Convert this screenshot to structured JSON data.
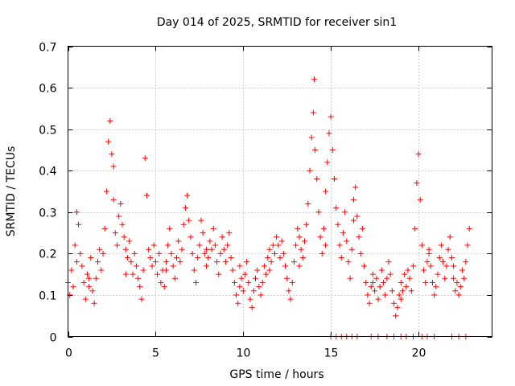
{
  "chart_data": {
    "type": "scatter",
    "title": "Day 014 of 2025, SRMTID for receiver sin1",
    "xlabel": "GPS time / hours",
    "ylabel": "SRMTID / TECUs",
    "xlim": [
      0,
      24.2
    ],
    "ylim": [
      0,
      0.7
    ],
    "xticks": [
      0,
      5,
      10,
      15,
      20
    ],
    "xtick_labels": [
      "0",
      "5",
      "10",
      "15",
      "20"
    ],
    "yticks": [
      0,
      0.1,
      0.2,
      0.3,
      0.4,
      0.5,
      0.6,
      0.7
    ],
    "ytick_labels": [
      "0",
      "0.1",
      "0.2",
      "0.3",
      "0.4",
      "0.5",
      "0.6",
      "0.7"
    ],
    "grid": true,
    "marker": "+",
    "color": "#ff0000",
    "series": [
      {
        "name": "sin1",
        "points": [
          [
            0.0,
            0.13
          ],
          [
            0.1,
            0.1
          ],
          [
            0.2,
            0.16
          ],
          [
            0.3,
            0.12
          ],
          [
            0.4,
            0.22
          ],
          [
            0.5,
            0.3
          ],
          [
            0.6,
            0.27
          ],
          [
            0.7,
            0.2
          ],
          [
            0.8,
            0.17
          ],
          [
            0.9,
            0.13
          ],
          [
            1.0,
            0.09
          ],
          [
            1.1,
            0.15
          ],
          [
            1.2,
            0.12
          ],
          [
            1.3,
            0.19
          ],
          [
            1.4,
            0.11
          ],
          [
            1.5,
            0.08
          ],
          [
            1.6,
            0.14
          ],
          [
            1.7,
            0.18
          ],
          [
            1.8,
            0.21
          ],
          [
            1.9,
            0.16
          ],
          [
            2.0,
            0.2
          ],
          [
            2.1,
            0.26
          ],
          [
            2.2,
            0.35
          ],
          [
            2.3,
            0.47
          ],
          [
            2.4,
            0.52
          ],
          [
            2.5,
            0.44
          ],
          [
            2.6,
            0.33
          ],
          [
            2.7,
            0.25
          ],
          [
            2.8,
            0.22
          ],
          [
            2.9,
            0.29
          ],
          [
            3.0,
            0.32
          ],
          [
            3.1,
            0.27
          ],
          [
            3.2,
            0.24
          ],
          [
            3.3,
            0.21
          ],
          [
            3.4,
            0.19
          ],
          [
            3.5,
            0.23
          ],
          [
            3.6,
            0.18
          ],
          [
            3.7,
            0.15
          ],
          [
            3.8,
            0.2
          ],
          [
            3.9,
            0.17
          ],
          [
            4.0,
            0.14
          ],
          [
            4.1,
            0.12
          ],
          [
            4.2,
            0.09
          ],
          [
            4.3,
            0.16
          ],
          [
            4.4,
            0.43
          ],
          [
            4.5,
            0.34
          ],
          [
            4.6,
            0.21
          ],
          [
            4.7,
            0.19
          ],
          [
            4.8,
            0.17
          ],
          [
            4.9,
            0.22
          ],
          [
            5.0,
            0.18
          ],
          [
            5.1,
            0.15
          ],
          [
            5.2,
            0.2
          ],
          [
            5.3,
            0.13
          ],
          [
            5.4,
            0.16
          ],
          [
            5.5,
            0.12
          ],
          [
            5.6,
            0.18
          ],
          [
            5.7,
            0.22
          ],
          [
            5.8,
            0.26
          ],
          [
            5.9,
            0.2
          ],
          [
            6.0,
            0.17
          ],
          [
            6.1,
            0.14
          ],
          [
            6.2,
            0.19
          ],
          [
            6.3,
            0.23
          ],
          [
            6.4,
            0.18
          ],
          [
            6.5,
            0.21
          ],
          [
            6.6,
            0.27
          ],
          [
            6.7,
            0.31
          ],
          [
            6.8,
            0.34
          ],
          [
            6.9,
            0.28
          ],
          [
            7.0,
            0.24
          ],
          [
            7.1,
            0.2
          ],
          [
            7.2,
            0.16
          ],
          [
            7.3,
            0.13
          ],
          [
            7.4,
            0.19
          ],
          [
            7.5,
            0.22
          ],
          [
            7.6,
            0.28
          ],
          [
            7.7,
            0.25
          ],
          [
            7.8,
            0.2
          ],
          [
            7.9,
            0.17
          ],
          [
            8.0,
            0.19
          ],
          [
            8.1,
            0.23
          ],
          [
            8.2,
            0.21
          ],
          [
            8.3,
            0.26
          ],
          [
            8.4,
            0.22
          ],
          [
            8.5,
            0.18
          ],
          [
            8.6,
            0.15
          ],
          [
            8.7,
            0.2
          ],
          [
            8.8,
            0.24
          ],
          [
            8.9,
            0.21
          ],
          [
            9.0,
            0.18
          ],
          [
            9.1,
            0.22
          ],
          [
            9.2,
            0.25
          ],
          [
            9.3,
            0.19
          ],
          [
            9.4,
            0.16
          ],
          [
            9.5,
            0.13
          ],
          [
            9.6,
            0.1
          ],
          [
            9.7,
            0.08
          ],
          [
            9.8,
            0.12
          ],
          [
            9.9,
            0.14
          ],
          [
            10.0,
            0.11
          ],
          [
            10.1,
            0.15
          ],
          [
            10.2,
            0.18
          ],
          [
            10.3,
            0.13
          ],
          [
            10.4,
            0.09
          ],
          [
            10.5,
            0.07
          ],
          [
            10.6,
            0.11
          ],
          [
            10.7,
            0.14
          ],
          [
            10.8,
            0.16
          ],
          [
            10.9,
            0.12
          ],
          [
            11.0,
            0.1
          ],
          [
            11.1,
            0.13
          ],
          [
            11.2,
            0.17
          ],
          [
            11.3,
            0.15
          ],
          [
            11.4,
            0.19
          ],
          [
            11.5,
            0.21
          ],
          [
            11.6,
            0.18
          ],
          [
            11.7,
            0.22
          ],
          [
            11.8,
            0.2
          ],
          [
            11.9,
            0.24
          ],
          [
            12.0,
            0.22
          ],
          [
            12.1,
            0.19
          ],
          [
            12.2,
            0.23
          ],
          [
            12.3,
            0.2
          ],
          [
            12.4,
            0.17
          ],
          [
            12.5,
            0.14
          ],
          [
            12.6,
            0.11
          ],
          [
            12.7,
            0.09
          ],
          [
            12.8,
            0.13
          ],
          [
            12.9,
            0.18
          ],
          [
            13.0,
            0.22
          ],
          [
            13.1,
            0.26
          ],
          [
            13.2,
            0.24
          ],
          [
            13.3,
            0.21
          ],
          [
            13.4,
            0.19
          ],
          [
            13.5,
            0.23
          ],
          [
            13.6,
            0.27
          ],
          [
            13.7,
            0.32
          ],
          [
            13.8,
            0.4
          ],
          [
            13.9,
            0.48
          ],
          [
            14.0,
            0.54
          ],
          [
            14.05,
            0.62
          ],
          [
            14.1,
            0.45
          ],
          [
            14.2,
            0.38
          ],
          [
            14.3,
            0.3
          ],
          [
            14.4,
            0.24
          ],
          [
            14.5,
            0.2
          ],
          [
            14.6,
            0.26
          ],
          [
            14.7,
            0.35
          ],
          [
            14.8,
            0.42
          ],
          [
            14.9,
            0.49
          ],
          [
            15.0,
            0.53
          ],
          [
            15.1,
            0.45
          ],
          [
            15.2,
            0.38
          ],
          [
            15.3,
            0.31
          ],
          [
            15.4,
            0.27
          ],
          [
            15.5,
            0.22
          ],
          [
            15.6,
            0.19
          ],
          [
            15.7,
            0.25
          ],
          [
            15.8,
            0.3
          ],
          [
            15.9,
            0.23
          ],
          [
            16.0,
            0.18
          ],
          [
            16.1,
            0.14
          ],
          [
            16.2,
            0.21
          ],
          [
            16.3,
            0.33
          ],
          [
            16.4,
            0.36
          ],
          [
            16.5,
            0.29
          ],
          [
            16.6,
            0.24
          ],
          [
            16.7,
            0.2
          ],
          [
            16.8,
            0.26
          ],
          [
            16.9,
            0.17
          ],
          [
            17.0,
            0.13
          ],
          [
            17.1,
            0.1
          ],
          [
            17.2,
            0.08
          ],
          [
            17.3,
            0.12
          ],
          [
            17.4,
            0.15
          ],
          [
            17.5,
            0.11
          ],
          [
            17.6,
            0.14
          ],
          [
            17.7,
            0.09
          ],
          [
            17.8,
            0.12
          ],
          [
            17.9,
            0.16
          ],
          [
            18.0,
            0.13
          ],
          [
            18.1,
            0.1
          ],
          [
            18.2,
            0.14
          ],
          [
            18.3,
            0.18
          ],
          [
            18.4,
            0.15
          ],
          [
            18.5,
            0.11
          ],
          [
            18.6,
            0.08
          ],
          [
            18.7,
            0.05
          ],
          [
            18.8,
            0.07
          ],
          [
            18.9,
            0.1
          ],
          [
            19.0,
            0.13
          ],
          [
            19.1,
            0.11
          ],
          [
            19.2,
            0.15
          ],
          [
            19.3,
            0.12
          ],
          [
            19.4,
            0.16
          ],
          [
            19.5,
            0.14
          ],
          [
            19.6,
            0.11
          ],
          [
            19.7,
            0.17
          ],
          [
            19.8,
            0.26
          ],
          [
            19.9,
            0.37
          ],
          [
            20.0,
            0.44
          ],
          [
            20.1,
            0.33
          ],
          [
            20.2,
            0.22
          ],
          [
            20.3,
            0.16
          ],
          [
            20.4,
            0.13
          ],
          [
            20.5,
            0.18
          ],
          [
            20.6,
            0.21
          ],
          [
            20.7,
            0.17
          ],
          [
            20.8,
            0.13
          ],
          [
            20.9,
            0.1
          ],
          [
            21.0,
            0.12
          ],
          [
            21.1,
            0.15
          ],
          [
            21.2,
            0.19
          ],
          [
            21.3,
            0.22
          ],
          [
            21.4,
            0.18
          ],
          [
            21.5,
            0.14
          ],
          [
            21.6,
            0.17
          ],
          [
            21.7,
            0.21
          ],
          [
            21.8,
            0.24
          ],
          [
            21.9,
            0.19
          ],
          [
            22.0,
            0.14
          ],
          [
            22.1,
            0.11
          ],
          [
            22.2,
            0.13
          ],
          [
            22.3,
            0.1
          ],
          [
            22.4,
            0.12
          ],
          [
            22.5,
            0.16
          ],
          [
            22.6,
            0.14
          ],
          [
            22.7,
            0.18
          ],
          [
            22.8,
            0.22
          ],
          [
            22.9,
            0.26
          ],
          [
            0.5,
            0.18
          ],
          [
            1.2,
            0.14
          ],
          [
            2.6,
            0.41
          ],
          [
            3.3,
            0.15
          ],
          [
            5.6,
            0.16
          ],
          [
            7.9,
            0.21
          ],
          [
            9.8,
            0.17
          ],
          [
            11.5,
            0.16
          ],
          [
            13.2,
            0.17
          ],
          [
            14.7,
            0.22
          ],
          [
            16.3,
            0.28
          ],
          [
            17.4,
            0.13
          ],
          [
            19.0,
            0.09
          ],
          [
            20.6,
            0.2
          ],
          [
            22.0,
            0.17
          ],
          [
            15.0,
            0.0
          ],
          [
            15.3,
            0.0
          ],
          [
            15.6,
            0.0
          ],
          [
            15.9,
            0.0
          ],
          [
            16.2,
            0.0
          ],
          [
            16.5,
            0.0
          ],
          [
            17.3,
            0.0
          ],
          [
            17.7,
            0.0
          ],
          [
            18.2,
            0.0
          ],
          [
            18.6,
            0.0
          ],
          [
            19.0,
            0.0
          ],
          [
            19.3,
            0.0
          ],
          [
            19.7,
            0.0
          ],
          [
            20.2,
            0.0
          ],
          [
            20.5,
            0.0
          ],
          [
            20.9,
            0.0
          ],
          [
            21.9,
            0.0
          ],
          [
            22.3,
            0.0
          ],
          [
            22.7,
            0.0
          ]
        ]
      }
    ]
  }
}
